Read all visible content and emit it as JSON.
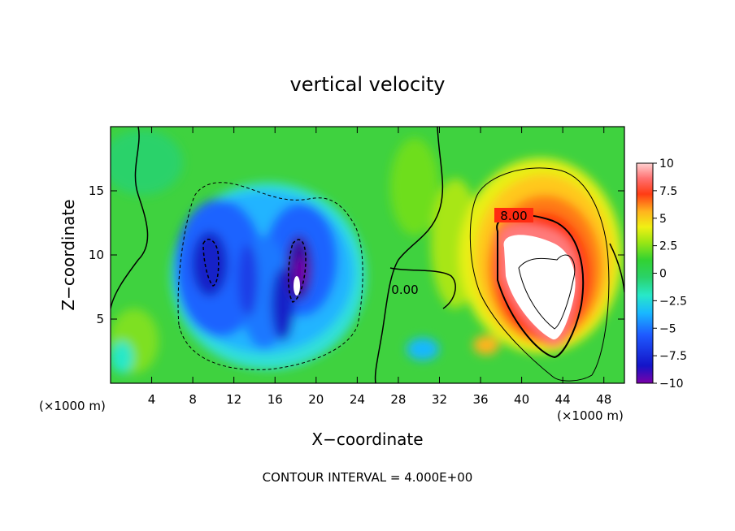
{
  "chart_data": {
    "type": "heatmap",
    "title": "vertical velocity",
    "xlabel": "X−coordinate",
    "ylabel": "Z−coordinate",
    "x_units_left": "(×1000 m)",
    "x_units_right": "(×1000 m)",
    "x_range": [
      0,
      50
    ],
    "y_range": [
      0,
      20
    ],
    "x_ticks": [
      4,
      8,
      12,
      16,
      20,
      24,
      28,
      32,
      36,
      40,
      44,
      48
    ],
    "y_ticks": [
      5,
      10,
      15
    ],
    "colorbar": {
      "range": [
        -10,
        10
      ],
      "ticks": [
        "10",
        "7.5",
        "5",
        "2.5",
        "0",
        "−2.5",
        "−5",
        "−7.5",
        "−10"
      ],
      "tick_values": [
        10,
        7.5,
        5,
        2.5,
        0,
        -2.5,
        -5,
        -7.5,
        -10
      ]
    },
    "contour_labels": [
      {
        "text": "8.00",
        "x": 38.5,
        "z": 13.0
      },
      {
        "text": "0.00",
        "x": 28.5,
        "z": 7.5
      }
    ],
    "footer": "CONTOUR INTERVAL = 4.000E+00",
    "features": [
      {
        "name": "updraft",
        "x": 42,
        "z": 9,
        "peak": 10
      },
      {
        "name": "downdraft-west",
        "x": 10,
        "z": 10,
        "peak": -7
      },
      {
        "name": "downdraft-center",
        "x": 18,
        "z": 9,
        "peak": -10
      }
    ]
  }
}
